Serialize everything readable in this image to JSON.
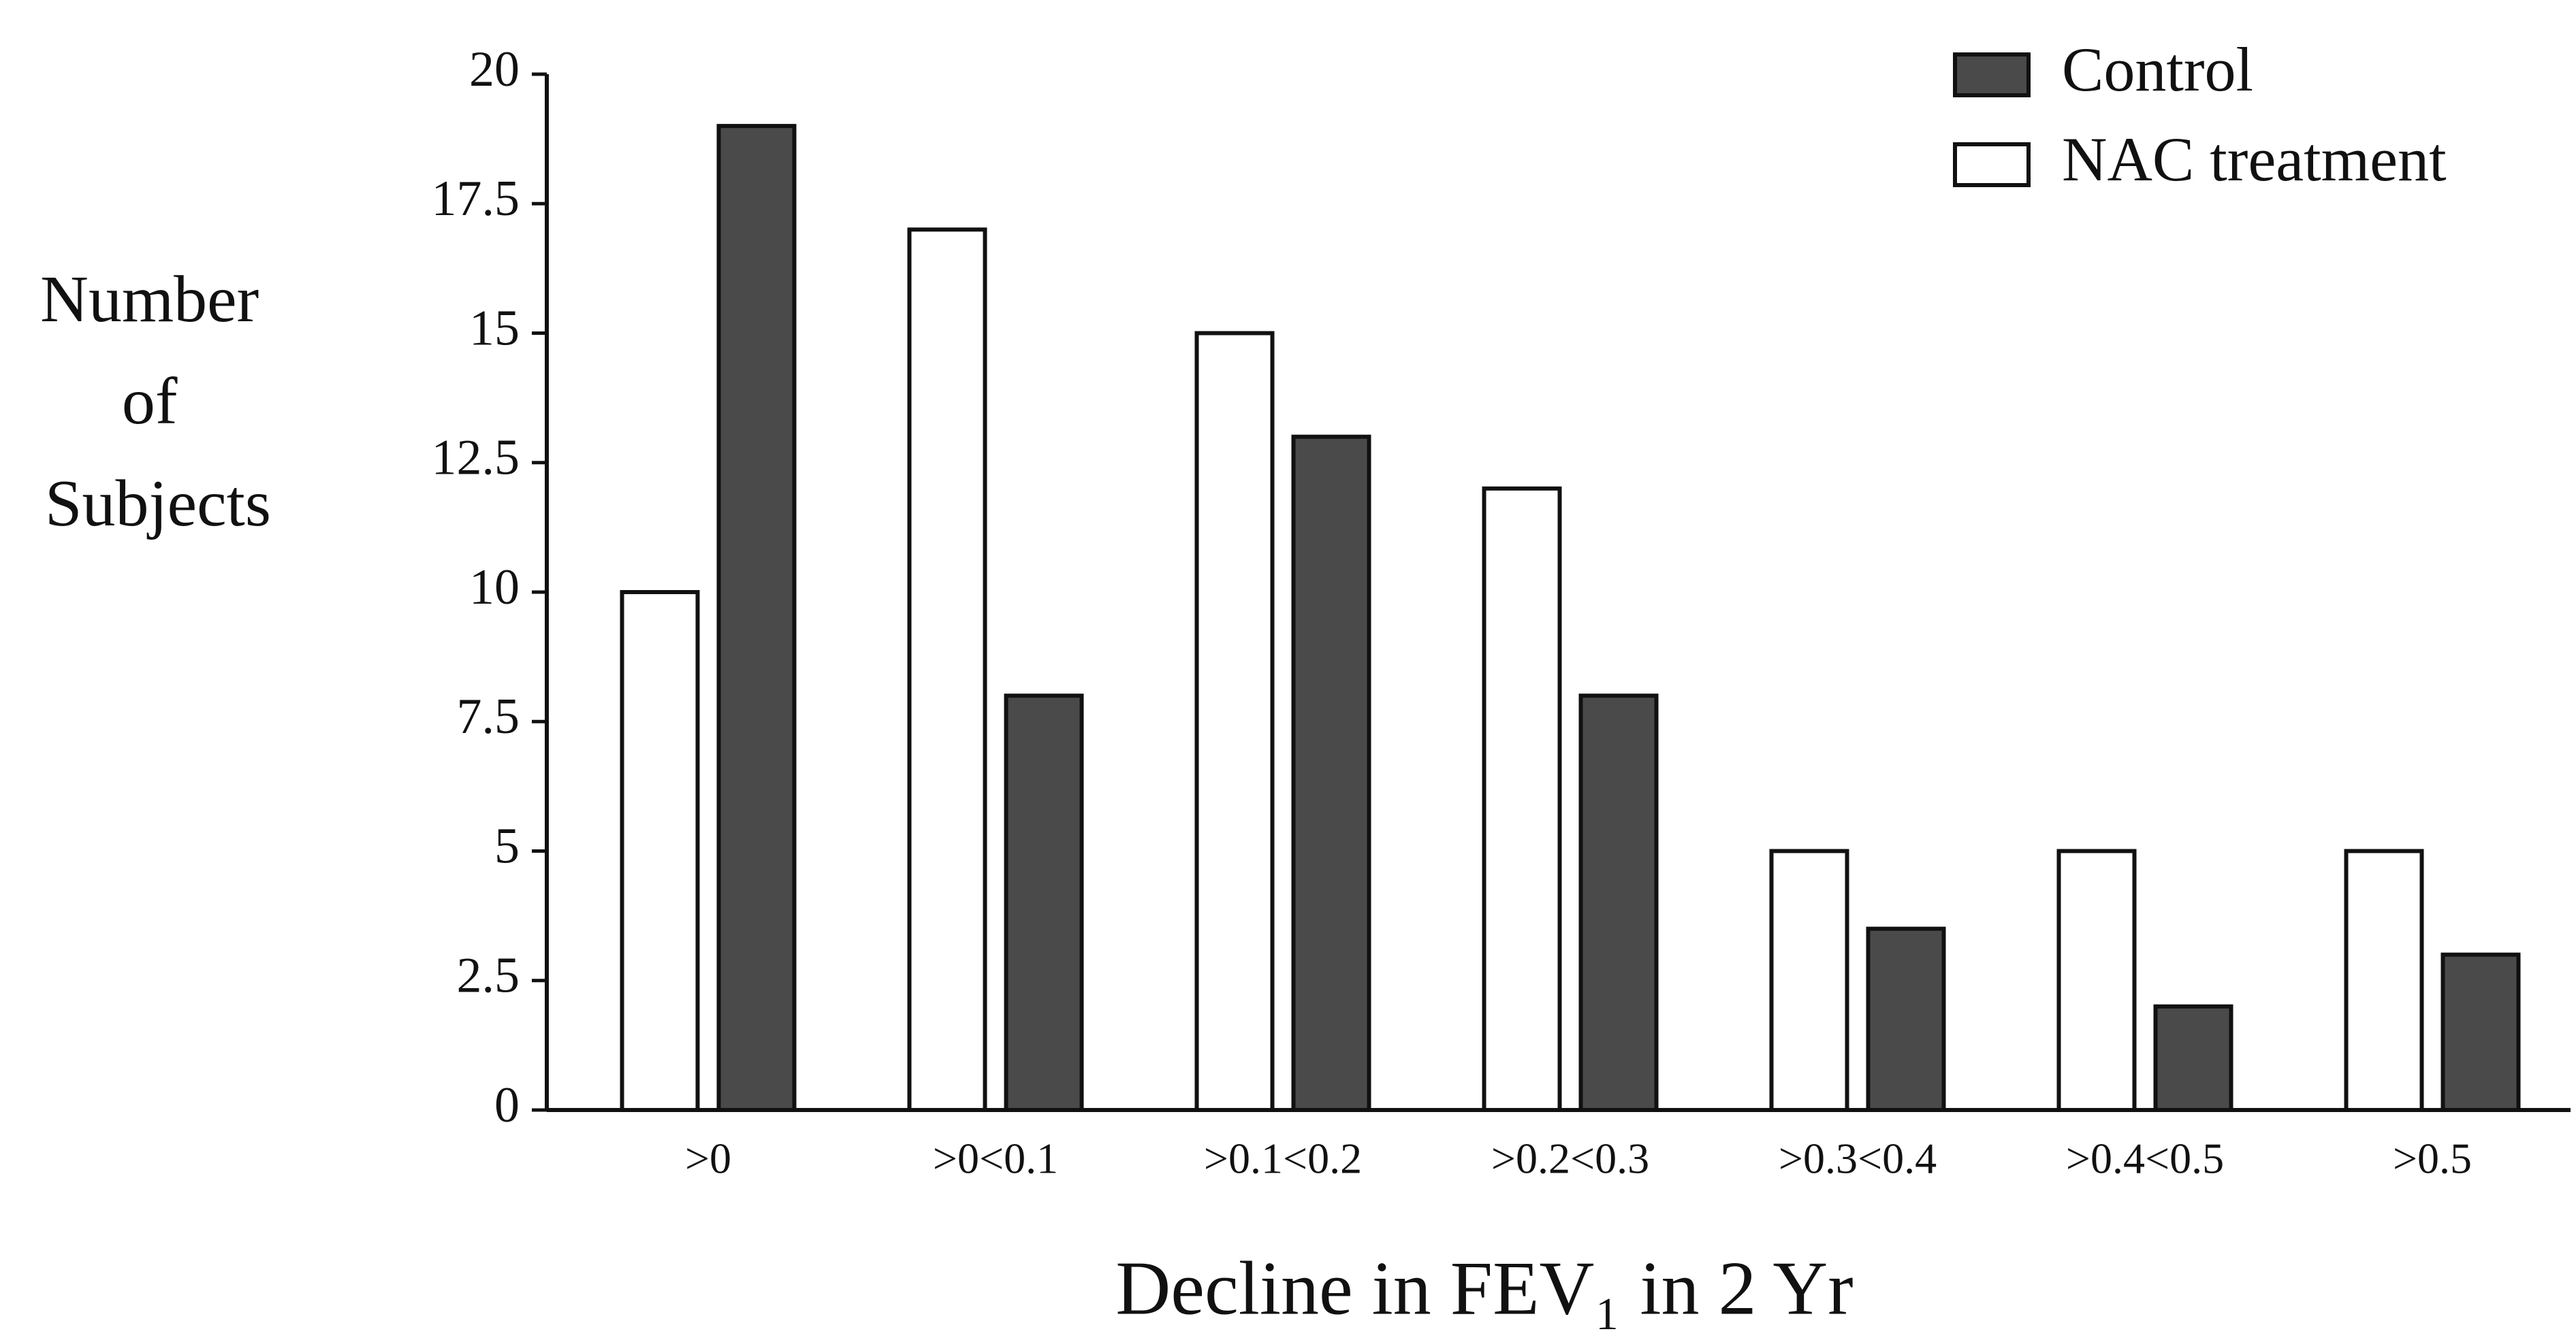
{
  "chart_data": {
    "type": "bar",
    "xlabel": "Decline in FEV₁ in 2 Yr",
    "ylabel": "Number of Subjects",
    "categories": [
      ">0",
      ">0<0.1",
      ">0.1<0.2",
      ">0.2<0.3",
      ">0.3<0.4",
      ">0.4<0.5",
      ">0.5"
    ],
    "series": [
      {
        "name": "NAC treatment",
        "color": "#ffffff",
        "values": [
          10,
          17,
          15,
          12,
          5,
          5,
          5
        ]
      },
      {
        "name": "Control",
        "color": "#4a4a4a",
        "values": [
          19,
          8,
          13,
          8,
          3.5,
          2,
          3
        ]
      }
    ],
    "ylim": [
      0,
      20
    ],
    "yticks": [
      0,
      2.5,
      5,
      7.5,
      10,
      12.5,
      15,
      17.5,
      20
    ],
    "legend": "top-right"
  }
}
